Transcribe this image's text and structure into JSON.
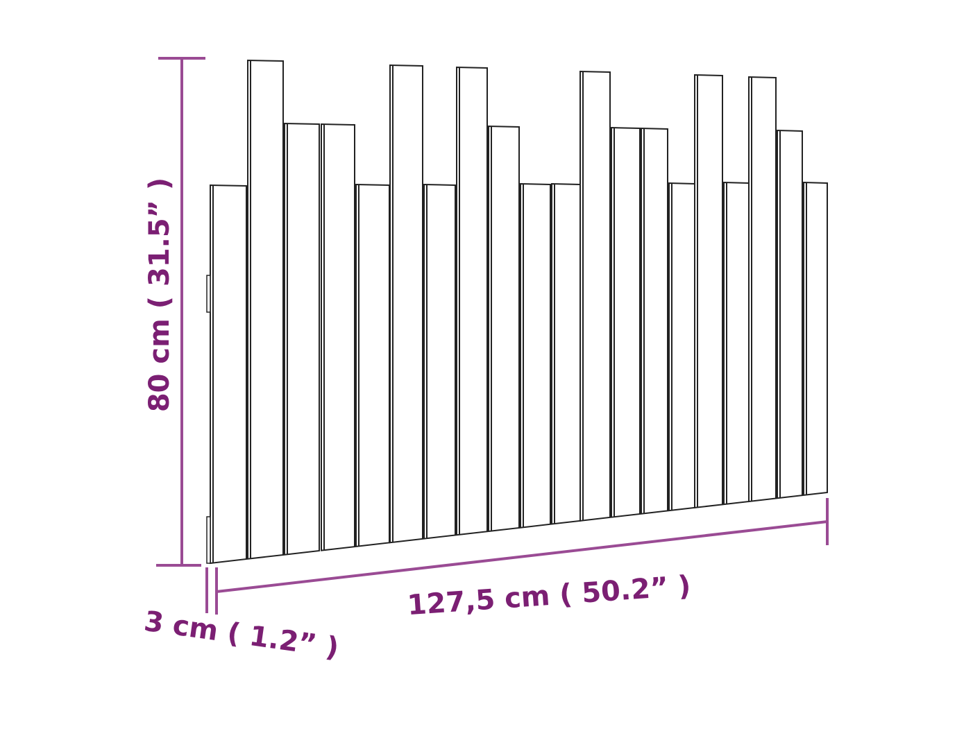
{
  "colors": {
    "dimension": "#9a4b94",
    "label": "#7b1f73",
    "outline": "#222222"
  },
  "dimensions": {
    "height": "80 cm ( 31.5” )",
    "width": "127,5 cm ( 50.2” )",
    "depth": "3 cm ( 1.2” )"
  }
}
